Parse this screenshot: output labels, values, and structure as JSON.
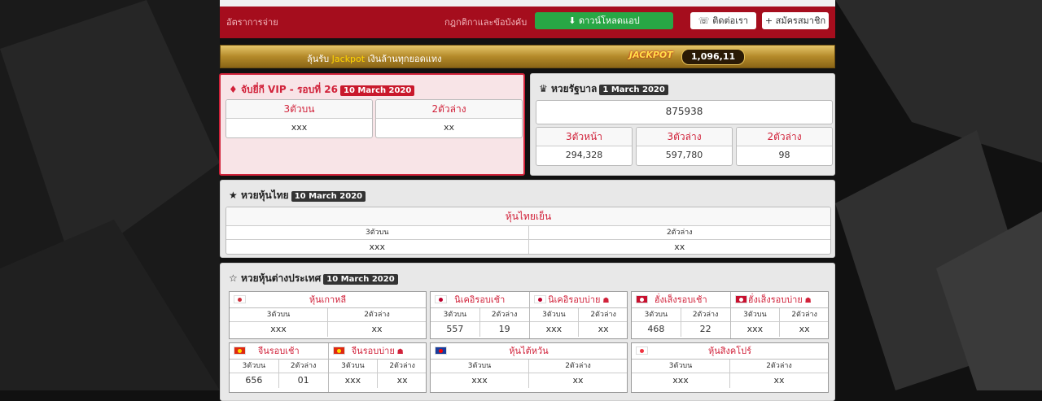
{
  "topbar": {
    "payout_rates": "อัตราการจ่าย",
    "rules": "กฎกติกาและข้อบังคับ",
    "download": "ดาวน์โหลดแอป",
    "contact": "ติดต่อเรา",
    "register": "สมัครสมาชิก"
  },
  "jackpot_banner": {
    "text_before": "ลุ้นรับ",
    "highlight": "Jackpot",
    "text_after": "เงินล้านทุกยอดแทง",
    "logo": "JACKPOT",
    "counter": "1,096,11"
  },
  "vip": {
    "title": "จับยี่กี VIP - รอบที่ 26",
    "date": "10 March 2020",
    "columns": [
      {
        "label": "3ตัวบน",
        "value": "xxx"
      },
      {
        "label": "2ตัวล่าง",
        "value": "xx"
      }
    ]
  },
  "government": {
    "title": "หวยรัฐบาล",
    "date": "1 March 2020",
    "first_prize": "875938",
    "columns": [
      {
        "label": "3ตัวหน้า",
        "value": "294,328"
      },
      {
        "label": "3ตัวล่าง",
        "value": "597,780"
      },
      {
        "label": "2ตัวล่าง",
        "value": "98"
      }
    ]
  },
  "thai_stock": {
    "title": "หวยหุ้นไทย",
    "date": "10 March 2020",
    "market": "หุ้นไทยเย็น",
    "columns": [
      {
        "label": "3ตัวบน",
        "value": "xxx"
      },
      {
        "label": "2ตัวล่าง",
        "value": "xx"
      }
    ]
  },
  "foreign_stock": {
    "title": "หวยหุ้นต่างประเทศ",
    "date": "10 March 2020",
    "cards": [
      {
        "markets": [
          {
            "name": "หุ้นเกาหลี",
            "columns": [
              {
                "label": "3ตัวบน",
                "value": "xxx"
              },
              {
                "label": "2ตัวล่าง",
                "value": "xx"
              }
            ]
          }
        ]
      },
      {
        "markets": [
          {
            "name": "นิเคอิรอบเช้า",
            "columns": [
              {
                "label": "3ตัวบน",
                "value": "557"
              },
              {
                "label": "2ตัวล่าง",
                "value": "19"
              }
            ]
          },
          {
            "name": "นิเคอิรอบบ่าย",
            "columns": [
              {
                "label": "3ตัวบน",
                "value": "xxx"
              },
              {
                "label": "2ตัวล่าง",
                "value": "xx"
              }
            ]
          }
        ]
      },
      {
        "markets": [
          {
            "name": "ฮั่งเส็งรอบเช้า",
            "columns": [
              {
                "label": "3ตัวบน",
                "value": "468"
              },
              {
                "label": "2ตัวล่าง",
                "value": "22"
              }
            ]
          },
          {
            "name": "ฮั่งเส็งรอบบ่าย",
            "columns": [
              {
                "label": "3ตัวบน",
                "value": "xxx"
              },
              {
                "label": "2ตัวล่าง",
                "value": "xx"
              }
            ]
          }
        ]
      },
      {
        "markets": [
          {
            "name": "จีนรอบเช้า",
            "columns": [
              {
                "label": "3ตัวบน",
                "value": "656"
              },
              {
                "label": "2ตัวล่าง",
                "value": "01"
              }
            ]
          },
          {
            "name": "จีนรอบบ่าย",
            "columns": [
              {
                "label": "3ตัวบน",
                "value": "xxx"
              },
              {
                "label": "2ตัวล่าง",
                "value": "xx"
              }
            ]
          }
        ]
      },
      {
        "markets": [
          {
            "name": "หุ้นไต้หวัน",
            "columns": [
              {
                "label": "3ตัวบน",
                "value": "xxx"
              },
              {
                "label": "2ตัวล่าง",
                "value": "xx"
              }
            ]
          }
        ]
      },
      {
        "markets": [
          {
            "name": "หุ้นสิงคโปร์",
            "columns": [
              {
                "label": "3ตัวบน",
                "value": "xxx"
              },
              {
                "label": "2ตัวล่าง",
                "value": "xx"
              }
            ]
          }
        ]
      }
    ]
  }
}
